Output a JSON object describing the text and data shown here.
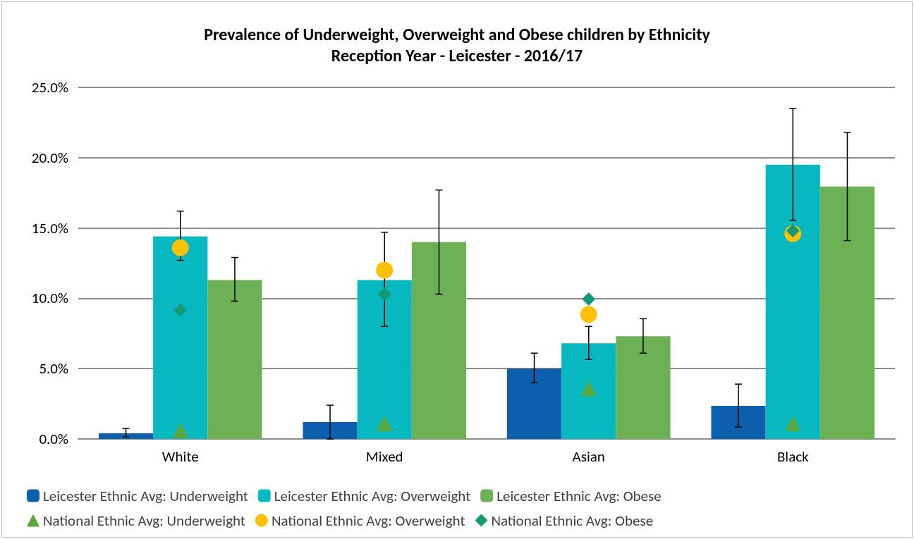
{
  "chart_data": {
    "type": "bar",
    "title": "Prevalence of Underweight, Overweight and Obese children by Ethnicity",
    "subtitle": "Reception Year - Leicester - 2016/17",
    "categories": [
      "White",
      "Mixed",
      "Asian",
      "Black"
    ],
    "series": [
      {
        "name": "Leicester Ethnic Avg: Underweight",
        "color": "#0b5fad",
        "values": [
          0.4,
          1.2,
          5.0,
          2.35
        ],
        "errors": [
          [
            0.15,
            0.75
          ],
          [
            0.0,
            2.4
          ],
          [
            4.0,
            6.1
          ],
          [
            0.85,
            3.9
          ]
        ]
      },
      {
        "name": "Leicester Ethnic Avg: Overweight",
        "color": "#08b8c0",
        "values": [
          14.4,
          11.3,
          6.8,
          19.5
        ],
        "errors": [
          [
            12.7,
            16.2
          ],
          [
            8.0,
            14.7
          ],
          [
            5.65,
            8.0
          ],
          [
            15.55,
            23.5
          ]
        ]
      },
      {
        "name": "Leicester Ethnic Avg: Obese",
        "color": "#6db155",
        "values": [
          11.3,
          14.0,
          7.3,
          17.95
        ],
        "errors": [
          [
            9.8,
            12.9
          ],
          [
            10.3,
            17.7
          ],
          [
            6.1,
            8.55
          ],
          [
            14.1,
            21.8
          ]
        ]
      },
      {
        "name": "National Ethnic Avg: Underweight",
        "type": "scatter",
        "marker": "triangle",
        "color": "#56a83c",
        "x": [
          "White",
          "Mixed",
          "Asian",
          "Black"
        ],
        "values": [
          0.6,
          1.1,
          3.6,
          1.1
        ]
      },
      {
        "name": "National Ethnic Avg: Overweight",
        "type": "scatter",
        "marker": "circle",
        "color": "#ffc000",
        "x": [
          "White",
          "Mixed",
          "Asian",
          "Black"
        ],
        "values": [
          13.6,
          12.0,
          8.85,
          14.6
        ]
      },
      {
        "name": "National Ethnic Avg: Obese",
        "type": "scatter",
        "marker": "diamond",
        "color": "#139a73",
        "x": [
          "White",
          "Mixed",
          "Asian",
          "Black"
        ],
        "values": [
          9.15,
          10.3,
          9.95,
          14.8
        ]
      }
    ],
    "ylim": [
      0,
      25
    ],
    "yticks": [
      {
        "value": 0,
        "label": "0.0%"
      },
      {
        "value": 5,
        "label": "5.0%"
      },
      {
        "value": 10,
        "label": "10.0%"
      },
      {
        "value": 15,
        "label": "15.0%"
      },
      {
        "value": 20,
        "label": "20.0%"
      },
      {
        "value": 25,
        "label": "25.0%"
      }
    ],
    "grid": "y",
    "legend": "bottom"
  }
}
